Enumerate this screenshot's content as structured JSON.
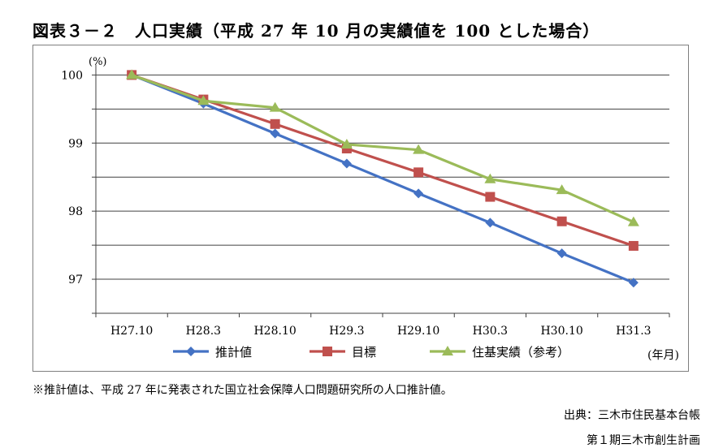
{
  "title": "図表３－２　人口実績（平成 27 年 10 月の実績値を 100 とした場合）",
  "chart_data": {
    "type": "line",
    "title": "",
    "ylabel": "(%)",
    "xlabel": "(年月)",
    "ylim": [
      96.5,
      100.1
    ],
    "yticks": [
      97,
      98,
      99,
      100
    ],
    "grid": true,
    "legend_position": "bottom",
    "categories": [
      "H27.10",
      "H28.3",
      "H28.10",
      "H29.3",
      "H29.10",
      "H30.3",
      "H30.10",
      "H31.3"
    ],
    "series": [
      {
        "name": "推計値",
        "color": "#4472c4",
        "marker": "diamond",
        "values": [
          100.0,
          99.58,
          99.14,
          98.7,
          98.26,
          97.83,
          97.38,
          96.95
        ]
      },
      {
        "name": "目標",
        "color": "#c0504d",
        "marker": "square",
        "values": [
          100.0,
          99.64,
          99.28,
          98.92,
          98.57,
          98.21,
          97.85,
          97.49
        ]
      },
      {
        "name": "住基実績（参考）",
        "color": "#9bbb59",
        "marker": "triangle",
        "values": [
          100.0,
          99.62,
          99.52,
          98.98,
          98.9,
          98.47,
          98.31,
          97.84
        ]
      }
    ]
  },
  "note": "※推計値は、平成 27 年に発表された国立社会保障人口問題研究所の人口推計値。",
  "source": "出典：三木市住民基本台帳",
  "plan": "第１期三木市創生計画"
}
